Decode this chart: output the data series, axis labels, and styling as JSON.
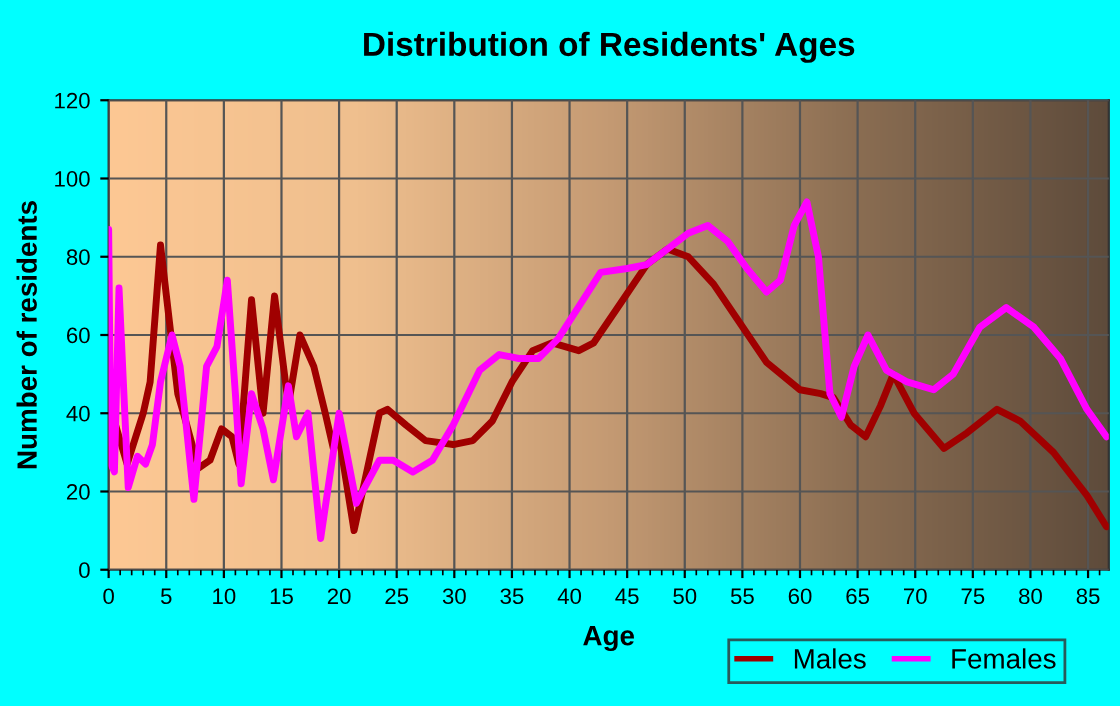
{
  "chart_data": {
    "type": "line",
    "title": "Distribution of Residents' Ages",
    "xlabel": "Age",
    "ylabel": "Number of residents",
    "xlim": [
      0,
      86.8
    ],
    "xticks": [
      0,
      5,
      10,
      15,
      20,
      25,
      30,
      35,
      40,
      45,
      50,
      55,
      60,
      65,
      70,
      75,
      80,
      85
    ],
    "ylim": [
      0,
      120
    ],
    "yticks": [
      0,
      20,
      40,
      60,
      80,
      100,
      120
    ],
    "grid": true,
    "legend": "bottom right",
    "marker": "none",
    "line_style": "solid",
    "series": [
      {
        "name": "Males",
        "color": "#a00000",
        "x": [
          0,
          0.6,
          1.6,
          3,
          3.6,
          4.5,
          6,
          6.5,
          7.8,
          8.8,
          9.8,
          10.7,
          11.3,
          12.4,
          13.4,
          14.4,
          15.6,
          16.6,
          17.8,
          18.8,
          19.5,
          20,
          21.3,
          23.5,
          24.2,
          25.8,
          27.5,
          29.9,
          31.6,
          33.3,
          35,
          36.8,
          38.5,
          40.8,
          42.1,
          44.4,
          46.7,
          48.5,
          50.3,
          52.5,
          54.8,
          57.1,
          60,
          61.8,
          62.9,
          64.4,
          65.7,
          67,
          68.1,
          69.9,
          72.5,
          74.5,
          77.1,
          79.1,
          82,
          84.9,
          86.6
        ],
        "values": [
          27,
          37,
          27,
          40,
          48,
          83,
          45,
          40,
          26,
          28,
          36,
          34,
          27,
          69,
          40,
          70,
          42,
          60,
          52,
          40,
          31,
          34,
          10,
          40,
          41,
          37,
          33,
          32,
          33,
          38,
          48,
          56,
          58,
          56,
          58,
          68,
          78,
          82,
          80,
          73,
          63,
          53,
          46,
          45,
          44,
          37,
          34,
          42,
          50,
          40,
          31,
          35,
          41,
          38,
          30,
          19,
          11
        ]
      },
      {
        "name": "Females",
        "color": "#ff00ff",
        "x": [
          0,
          0.2,
          0.5,
          0.9,
          1.7,
          2.5,
          3.2,
          3.8,
          4.5,
          5.5,
          6.2,
          7.4,
          8.5,
          9.4,
          10.3,
          11,
          11.5,
          12.4,
          13.4,
          14.3,
          15.6,
          16.3,
          17.3,
          18.4,
          20,
          21.5,
          23.5,
          24.7,
          26.4,
          28.1,
          29.9,
          32.2,
          33.9,
          35.6,
          37.3,
          39,
          41.4,
          42.7,
          45,
          46.7,
          48.5,
          50.3,
          52,
          53.7,
          55.4,
          57.1,
          58.3,
          59.5,
          60.6,
          61.6,
          62.6,
          63.6,
          64.7,
          65.9,
          67.5,
          69.3,
          71.6,
          73.3,
          75.6,
          77.9,
          80.3,
          82.6,
          84.9,
          86.6
        ],
        "values": [
          87,
          27,
          25,
          72,
          21,
          29,
          27,
          32,
          48,
          60,
          52,
          18,
          52,
          57,
          74,
          45,
          22,
          45,
          36,
          23,
          47,
          34,
          40,
          8,
          40,
          17,
          28,
          28,
          25,
          28,
          37,
          51,
          55,
          54,
          54,
          59,
          70,
          76,
          77,
          78,
          82,
          86,
          88,
          84,
          77,
          71,
          74,
          88,
          94,
          80,
          45,
          39,
          52,
          60,
          51,
          48,
          46,
          50,
          62,
          67,
          62,
          54,
          41,
          34
        ]
      }
    ]
  }
}
